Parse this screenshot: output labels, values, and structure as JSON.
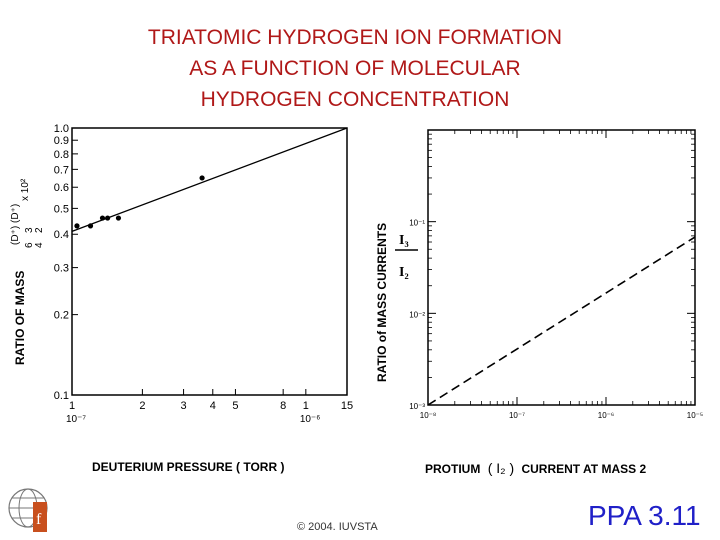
{
  "title_lines": [
    "TRIATOMIC HYDROGEN ION FORMATION",
    "AS A FUNCTION OF MOLECULAR",
    "HYDROGEN CONCENTRATION"
  ],
  "footer": {
    "copyright": "© 2004. IUVSTA",
    "slide_id": "PPA 3.11"
  },
  "colors": {
    "title": "#b01818",
    "slide_id": "#2020c8"
  },
  "chart_data": [
    {
      "type": "scatter",
      "xlabel": "DEUTERIUM PRESSURE ( TORR  )",
      "ylabel": "RATIO OF MASS",
      "ylabel_ratio": {
        "left": "6",
        "left_bottom": "4",
        "mid_top": "3",
        "mid_bottom": "2",
        "numerator": "(D⁺)",
        "denominator": "(D⁺)",
        "suffix": "x 10²"
      },
      "xscale": "log",
      "yscale": "log",
      "xlim": [
        1e-07,
        1.5e-06
      ],
      "ylim": [
        0.1,
        1.0
      ],
      "x_ticks": [
        {
          "value": 1e-07,
          "label": "1"
        },
        {
          "value": 2e-07,
          "label": "2"
        },
        {
          "value": 3e-07,
          "label": "3"
        },
        {
          "value": 4e-07,
          "label": "4"
        },
        {
          "value": 5e-07,
          "label": "5"
        },
        {
          "value": 8e-07,
          "label": "8"
        },
        {
          "value": 1e-06,
          "label": "1"
        },
        {
          "value": 1.5e-06,
          "label": "15"
        }
      ],
      "x_tick_exponent_labels": [
        "10⁻⁷",
        "10⁻⁶"
      ],
      "y_ticks": [
        {
          "value": 1.0,
          "label": "1.0"
        },
        {
          "value": 0.9,
          "label": "0.9"
        },
        {
          "value": 0.8,
          "label": "0.8"
        },
        {
          "value": 0.7,
          "label": "0.7"
        },
        {
          "value": 0.6,
          "label": "0.6"
        },
        {
          "value": 0.5,
          "label": "0.5"
        },
        {
          "value": 0.4,
          "label": "0.4"
        },
        {
          "value": 0.3,
          "label": "0.3"
        },
        {
          "value": 0.2,
          "label": "0.2"
        },
        {
          "value": 0.1,
          "label": "0.1"
        }
      ],
      "points": [
        {
          "x": 1.05e-07,
          "y": 0.43
        },
        {
          "x": 1.2e-07,
          "y": 0.43
        },
        {
          "x": 1.35e-07,
          "y": 0.46
        },
        {
          "x": 1.42e-07,
          "y": 0.46
        },
        {
          "x": 1.58e-07,
          "y": 0.46
        },
        {
          "x": 3.6e-07,
          "y": 0.65
        }
      ],
      "fit_line": {
        "x": [
          1e-07,
          1.5e-06
        ],
        "y": [
          0.41,
          1.0
        ]
      }
    },
    {
      "type": "line",
      "xlabel": "PROTIUM",
      "xlabel_symbol": "( I₂ )",
      "xlabel_suffix": "CURRENT AT MASS 2",
      "ylabel": "RATIO of MASS CURRENTS",
      "ylabel_ratio": {
        "numerator": "I₃",
        "denominator": "I₂"
      },
      "xscale": "log",
      "yscale": "log",
      "xlim": [
        1e-08,
        1e-05
      ],
      "ylim": [
        0.001,
        1.0
      ],
      "x_ticks": [
        {
          "value": 1e-08,
          "label": "10⁻⁸"
        },
        {
          "value": 1e-07,
          "label": "10⁻⁷"
        },
        {
          "value": 1e-06,
          "label": "10⁻⁶"
        },
        {
          "value": 1e-05,
          "label": "10⁻⁵"
        }
      ],
      "y_ticks": [
        {
          "value": 0.001,
          "label": "10⁻³"
        },
        {
          "value": 0.01,
          "label": "10⁻²"
        },
        {
          "value": 0.1,
          "label": "10⁻¹"
        }
      ],
      "series": [
        {
          "style": "dashed",
          "x": [
            1e-08,
            1e-05
          ],
          "y": [
            0.001,
            0.068
          ]
        }
      ]
    }
  ]
}
